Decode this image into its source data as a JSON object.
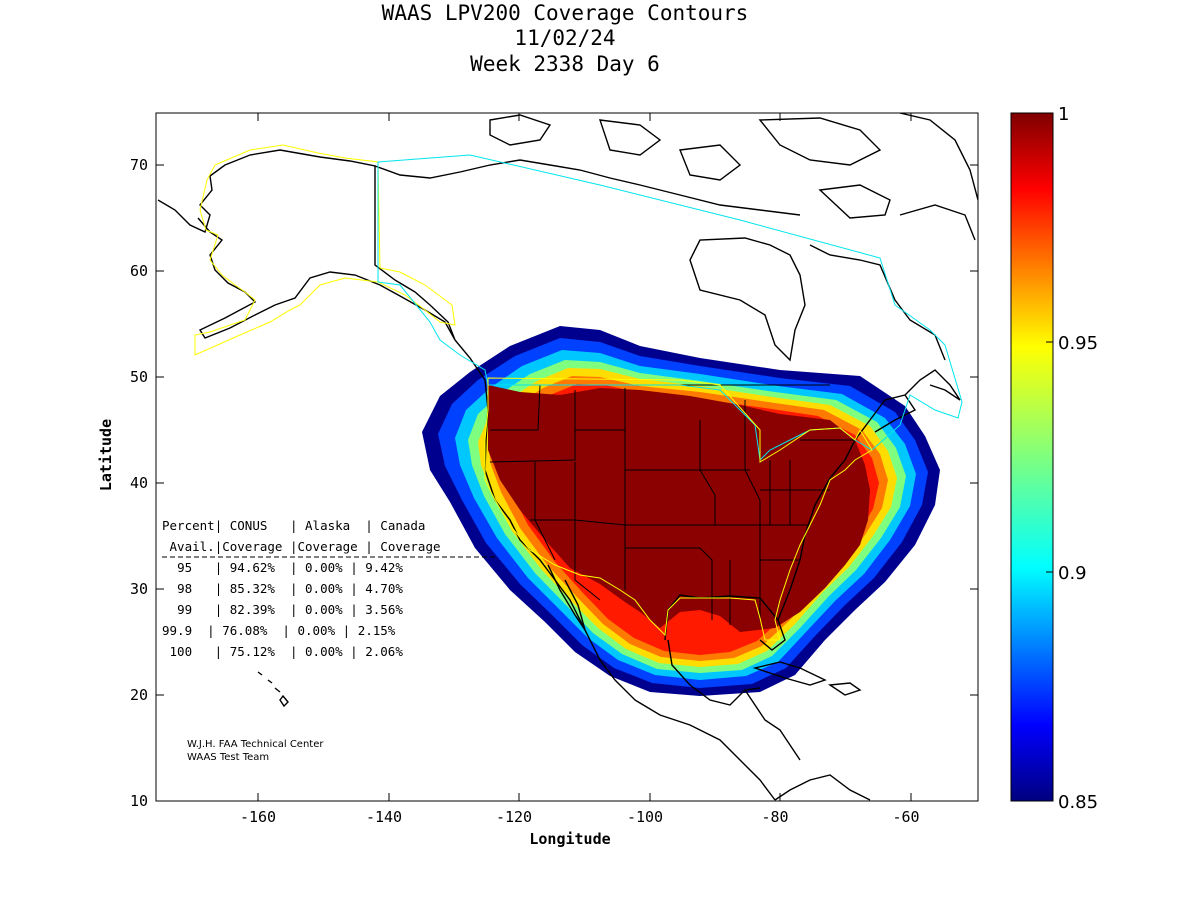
{
  "title_lines": [
    "WAAS LPV200 Coverage Contours",
    "11/02/24",
    "Week 2338 Day 6"
  ],
  "axes": {
    "xlabel": "Longitude",
    "ylabel": "Latitude",
    "x_ticks": [
      "-160",
      "-140",
      "-120",
      "-100",
      "-80",
      "-60"
    ],
    "y_ticks": [
      "10",
      "20",
      "30",
      "40",
      "50",
      "60",
      "70"
    ]
  },
  "colorbar": {
    "ticks": [
      "0.85",
      "0.9",
      "0.95",
      "1"
    ],
    "colormap": "jet"
  },
  "table": {
    "header1": [
      "Percent",
      "CONUS",
      "Alaska",
      "Canada"
    ],
    "header2": [
      "Avail.",
      "Coverage",
      "Coverage",
      "Coverage"
    ],
    "rows": [
      [
        "95",
        "94.62%",
        "0.00%",
        "9.42%"
      ],
      [
        "98",
        "85.32%",
        "0.00%",
        "4.70%"
      ],
      [
        "99",
        "82.39%",
        "0.00%",
        "3.56%"
      ],
      [
        "99.9",
        "76.08%",
        "0.00%",
        "2.15%"
      ],
      [
        "100",
        "75.12%",
        "0.00%",
        "2.06%"
      ]
    ]
  },
  "credit_lines": [
    "W.J.H. FAA Technical Center",
    "WAAS Test Team"
  ],
  "colors": {
    "alaska_boundary": "#ffff00",
    "canada_boundary": "#00e5ee",
    "conus_boundary": "#ffff00",
    "coastline": "#000000"
  }
}
